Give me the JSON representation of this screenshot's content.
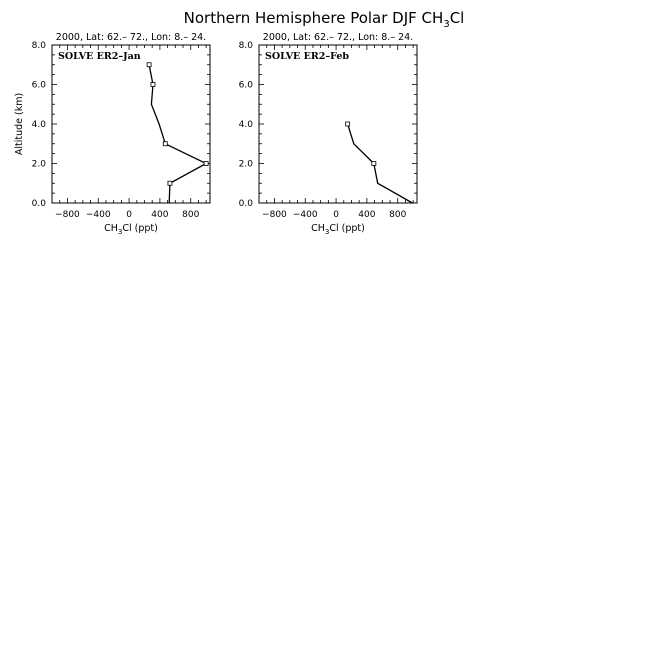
{
  "figure": {
    "title_main": "Northern Hemisphere Polar DJF CH",
    "title_sub": "3",
    "title_tail": "Cl"
  },
  "chart_data": [
    {
      "type": "line",
      "header": "2000, Lat: 62.– 72., Lon: 8.– 24.",
      "label": "SOLVE ER2–Jan",
      "xlabel_main": "CH",
      "xlabel_sub": "3",
      "xlabel_tail": "Cl (ppt)",
      "ylabel": "Altitude (km)",
      "xlim": [
        -1000,
        1050
      ],
      "ylim": [
        0,
        8
      ],
      "xticks": [
        -800,
        -400,
        0,
        400,
        800
      ],
      "xtick_labels": [
        "−800",
        "−400",
        "0",
        "400",
        "800"
      ],
      "yticks": [
        0,
        2,
        4,
        6,
        8
      ],
      "ytick_labels": [
        "0.0",
        "2.0",
        "4.0",
        "6.0",
        "8.0"
      ],
      "points": [
        {
          "x": 520,
          "y": 0.0,
          "marker": false
        },
        {
          "x": 530,
          "y": 1.0,
          "marker": true
        },
        {
          "x": 1000,
          "y": 2.0,
          "marker": true
        },
        {
          "x": 470,
          "y": 3.0,
          "marker": true
        },
        {
          "x": 390,
          "y": 4.0,
          "marker": false
        },
        {
          "x": 290,
          "y": 5.0,
          "marker": false
        },
        {
          "x": 310,
          "y": 6.0,
          "marker": true
        },
        {
          "x": 260,
          "y": 7.0,
          "marker": true
        }
      ]
    },
    {
      "type": "line",
      "header": "2000, Lat: 62.– 72., Lon: 8.– 24.",
      "label": "SOLVE ER2–Feb",
      "xlabel_main": "CH",
      "xlabel_sub": "3",
      "xlabel_tail": "Cl (ppt)",
      "ylabel": "",
      "xlim": [
        -1000,
        1050
      ],
      "ylim": [
        0,
        8
      ],
      "xticks": [
        -800,
        -400,
        0,
        400,
        800
      ],
      "xtick_labels": [
        "−800",
        "−400",
        "0",
        "400",
        "800"
      ],
      "yticks": [
        0,
        2,
        4,
        6,
        8
      ],
      "ytick_labels": [
        "0.0",
        "2.0",
        "4.0",
        "6.0",
        "8.0"
      ],
      "points": [
        {
          "x": 990,
          "y": 0.0,
          "marker": false
        },
        {
          "x": 540,
          "y": 1.0,
          "marker": false
        },
        {
          "x": 490,
          "y": 2.0,
          "marker": true
        },
        {
          "x": 230,
          "y": 3.0,
          "marker": false
        },
        {
          "x": 150,
          "y": 4.0,
          "marker": true
        }
      ]
    }
  ]
}
